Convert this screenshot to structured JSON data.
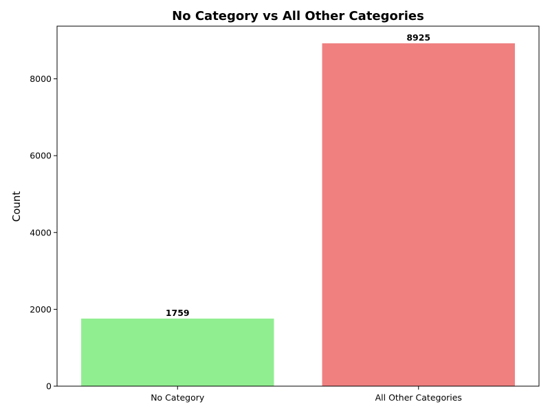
{
  "chart_data": {
    "type": "bar",
    "title": "No Category vs All Other Categories",
    "xlabel": "",
    "ylabel": "Count",
    "categories": [
      "No Category",
      "All Other Categories"
    ],
    "values": [
      1759,
      8925
    ],
    "value_labels": [
      "1759",
      "8925"
    ],
    "colors": [
      "#90ee90",
      "#f08080"
    ],
    "ylim": [
      0,
      9371
    ],
    "yticks": [
      0,
      2000,
      4000,
      6000,
      8000
    ],
    "ytick_labels": [
      "0",
      "2000",
      "4000",
      "6000",
      "8000"
    ],
    "grid": false,
    "legend": "none"
  }
}
